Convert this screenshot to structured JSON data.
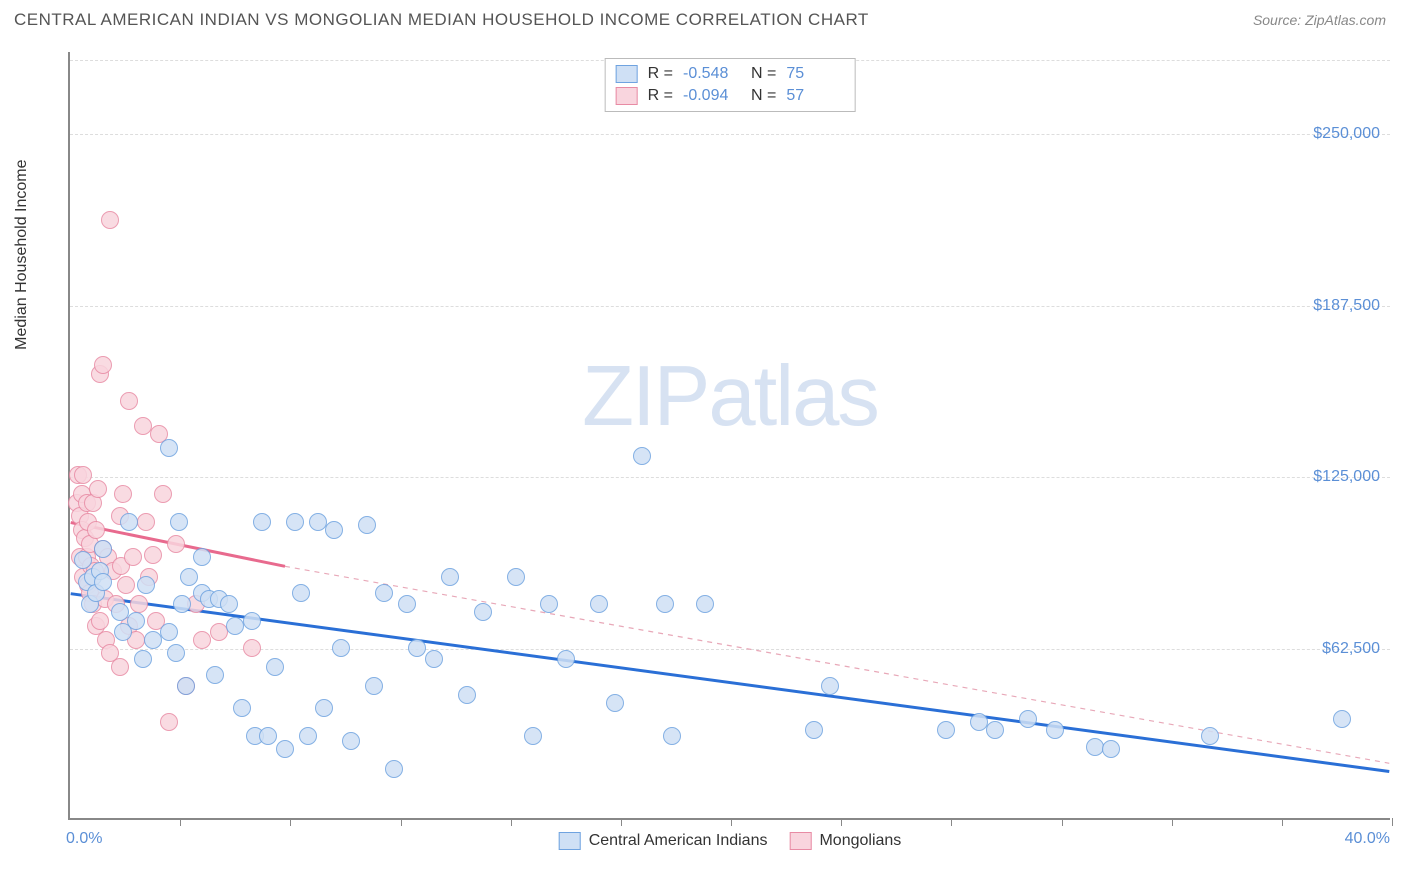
{
  "header": {
    "title": "CENTRAL AMERICAN INDIAN VS MONGOLIAN MEDIAN HOUSEHOLD INCOME CORRELATION CHART",
    "source_prefix": "Source: ",
    "source": "ZipAtlas.com"
  },
  "chart": {
    "type": "scatter",
    "ylabel": "Median Household Income",
    "xlim": [
      0,
      40
    ],
    "ylim": [
      0,
      280000
    ],
    "xtick_label_left": "0.0%",
    "xtick_label_right": "40.0%",
    "xtick_positions_pct": [
      0,
      10,
      20,
      30,
      40
    ],
    "ytick_labels": [
      "$62,500",
      "$125,000",
      "$187,500",
      "$250,000"
    ],
    "ytick_values": [
      62500,
      125000,
      187500,
      250000
    ],
    "grid_color": "#dddddd",
    "axis_color": "#888888",
    "background_color": "#ffffff",
    "tick_label_color": "#5b8fd6",
    "marker_radius": 9,
    "marker_border_width": 1.5,
    "watermark": "ZIPatlas",
    "watermark_color": "#b8cce8"
  },
  "series": [
    {
      "name": "Central American Indians",
      "fill": "#cfe0f5",
      "stroke": "#6fa3e0",
      "trend": {
        "x1": 0,
        "y1": 82000,
        "x2": 40,
        "y2": 17000,
        "color": "#2a6fd6",
        "width": 3,
        "dash": "none"
      },
      "R_label": "R =",
      "R": "-0.548",
      "N_label": "N =",
      "N": "75",
      "points": [
        [
          0.4,
          94000
        ],
        [
          0.5,
          86000
        ],
        [
          0.6,
          78000
        ],
        [
          0.7,
          88000
        ],
        [
          0.8,
          82000
        ],
        [
          0.9,
          90000
        ],
        [
          1.0,
          86000
        ],
        [
          1.0,
          98000
        ],
        [
          1.5,
          75000
        ],
        [
          1.6,
          68000
        ],
        [
          1.8,
          108000
        ],
        [
          2.0,
          72000
        ],
        [
          2.2,
          58000
        ],
        [
          2.3,
          85000
        ],
        [
          2.5,
          65000
        ],
        [
          3.0,
          135000
        ],
        [
          3.0,
          68000
        ],
        [
          3.2,
          60000
        ],
        [
          3.3,
          108000
        ],
        [
          3.4,
          78000
        ],
        [
          3.5,
          48000
        ],
        [
          3.6,
          88000
        ],
        [
          4.0,
          95000
        ],
        [
          4.0,
          82000
        ],
        [
          4.2,
          80000
        ],
        [
          4.4,
          52000
        ],
        [
          4.5,
          80000
        ],
        [
          4.8,
          78000
        ],
        [
          5.0,
          70000
        ],
        [
          5.2,
          40000
        ],
        [
          5.5,
          72000
        ],
        [
          5.6,
          30000
        ],
        [
          5.8,
          108000
        ],
        [
          6.0,
          30000
        ],
        [
          6.2,
          55000
        ],
        [
          6.5,
          25000
        ],
        [
          6.8,
          108000
        ],
        [
          7.0,
          82000
        ],
        [
          7.2,
          30000
        ],
        [
          7.5,
          108000
        ],
        [
          7.7,
          40000
        ],
        [
          8.0,
          105000
        ],
        [
          8.2,
          62000
        ],
        [
          8.5,
          28000
        ],
        [
          9.0,
          107000
        ],
        [
          9.2,
          48000
        ],
        [
          9.5,
          82000
        ],
        [
          9.8,
          18000
        ],
        [
          10.2,
          78000
        ],
        [
          10.5,
          62000
        ],
        [
          11.0,
          58000
        ],
        [
          11.5,
          88000
        ],
        [
          12.0,
          45000
        ],
        [
          12.5,
          75000
        ],
        [
          13.5,
          88000
        ],
        [
          14.0,
          30000
        ],
        [
          14.5,
          78000
        ],
        [
          15.0,
          58000
        ],
        [
          16.0,
          78000
        ],
        [
          16.5,
          42000
        ],
        [
          17.3,
          132000
        ],
        [
          18.0,
          78000
        ],
        [
          18.2,
          30000
        ],
        [
          19.2,
          78000
        ],
        [
          22.5,
          32000
        ],
        [
          23.0,
          48000
        ],
        [
          26.5,
          32000
        ],
        [
          27.5,
          35000
        ],
        [
          28.0,
          32000
        ],
        [
          29.0,
          36000
        ],
        [
          29.8,
          32000
        ],
        [
          31.0,
          26000
        ],
        [
          31.5,
          25000
        ],
        [
          34.5,
          30000
        ],
        [
          38.5,
          36000
        ]
      ]
    },
    {
      "name": "Mongolians",
      "fill": "#f9d5de",
      "stroke": "#e88ba4",
      "trend_solid": {
        "x1": 0,
        "y1": 108000,
        "x2": 6.5,
        "y2": 92000,
        "color": "#e86a8e",
        "width": 3
      },
      "trend_dash": {
        "x1": 6.5,
        "y1": 92000,
        "x2": 40,
        "y2": 20000,
        "color": "#e8a8b8",
        "width": 1.2
      },
      "R_label": "R =",
      "R": "-0.094",
      "N_label": "N =",
      "N": "57",
      "points": [
        [
          0.2,
          115000
        ],
        [
          0.25,
          125000
        ],
        [
          0.3,
          110000
        ],
        [
          0.35,
          118000
        ],
        [
          0.3,
          95000
        ],
        [
          0.35,
          105000
        ],
        [
          0.4,
          125000
        ],
        [
          0.4,
          88000
        ],
        [
          0.45,
          102000
        ],
        [
          0.5,
          115000
        ],
        [
          0.5,
          95000
        ],
        [
          0.55,
          108000
        ],
        [
          0.55,
          85000
        ],
        [
          0.6,
          100000
        ],
        [
          0.6,
          82000
        ],
        [
          0.65,
          92000
        ],
        [
          0.7,
          115000
        ],
        [
          0.7,
          78000
        ],
        [
          0.75,
          90000
        ],
        [
          0.8,
          70000
        ],
        [
          0.8,
          105000
        ],
        [
          0.85,
          120000
        ],
        [
          0.9,
          162000
        ],
        [
          0.9,
          72000
        ],
        [
          1.0,
          98000
        ],
        [
          1.0,
          165000
        ],
        [
          1.05,
          80000
        ],
        [
          1.1,
          65000
        ],
        [
          1.15,
          95000
        ],
        [
          1.2,
          218000
        ],
        [
          1.2,
          60000
        ],
        [
          1.3,
          90000
        ],
        [
          1.4,
          78000
        ],
        [
          1.5,
          110000
        ],
        [
          1.5,
          55000
        ],
        [
          1.55,
          92000
        ],
        [
          1.6,
          118000
        ],
        [
          1.7,
          85000
        ],
        [
          1.8,
          152000
        ],
        [
          1.8,
          70000
        ],
        [
          1.9,
          95000
        ],
        [
          2.0,
          65000
        ],
        [
          2.1,
          78000
        ],
        [
          2.2,
          143000
        ],
        [
          2.3,
          108000
        ],
        [
          2.4,
          88000
        ],
        [
          2.5,
          96000
        ],
        [
          2.6,
          72000
        ],
        [
          2.7,
          140000
        ],
        [
          2.8,
          118000
        ],
        [
          3.0,
          35000
        ],
        [
          3.2,
          100000
        ],
        [
          3.5,
          48000
        ],
        [
          3.8,
          78000
        ],
        [
          4.0,
          65000
        ],
        [
          4.5,
          68000
        ],
        [
          5.5,
          62000
        ]
      ]
    }
  ],
  "legend": {
    "series1_label": "Central American Indians",
    "series2_label": "Mongolians"
  }
}
